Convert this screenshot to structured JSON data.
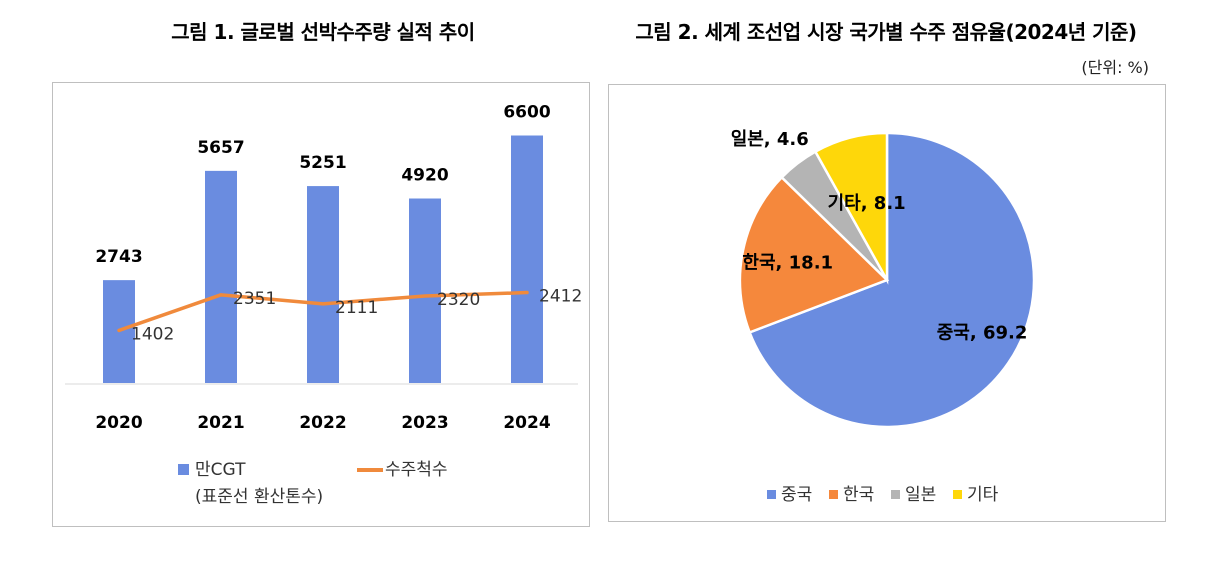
{
  "chart_data": [
    {
      "type": "bar",
      "title": "그림 1. 글로벌 선박수주량 실적 추이",
      "categories": [
        "2020",
        "2021",
        "2022",
        "2023",
        "2024"
      ],
      "series": [
        {
          "name": "만CGT\n(표준선 환산톤수)",
          "kind": "bar",
          "color": "#6a8ce0",
          "values": [
            2743,
            5657,
            5251,
            4920,
            6600
          ]
        },
        {
          "name": "수주척수",
          "kind": "line",
          "color": "#f08a3c",
          "values": [
            1402,
            2351,
            2111,
            2320,
            2412
          ]
        }
      ],
      "ylim": [
        0,
        7200
      ],
      "xlabel": "",
      "ylabel": "",
      "legend": [
        "만CGT",
        "(표준선 환산톤수)",
        "수주척수"
      ]
    },
    {
      "type": "pie",
      "title": "그림 2. 세계 조선업 시장 국가별 수주 점유율(2024년 기준)",
      "unit": "(단위: %)",
      "slices": [
        {
          "label": "중국",
          "value": 69.2,
          "color": "#6a8ce0"
        },
        {
          "label": "한국",
          "value": 18.1,
          "color": "#f5883c"
        },
        {
          "label": "일본",
          "value": 4.6,
          "color": "#b4b4b4"
        },
        {
          "label": "기타",
          "value": 8.1,
          "color": "#fed70a"
        }
      ]
    }
  ]
}
